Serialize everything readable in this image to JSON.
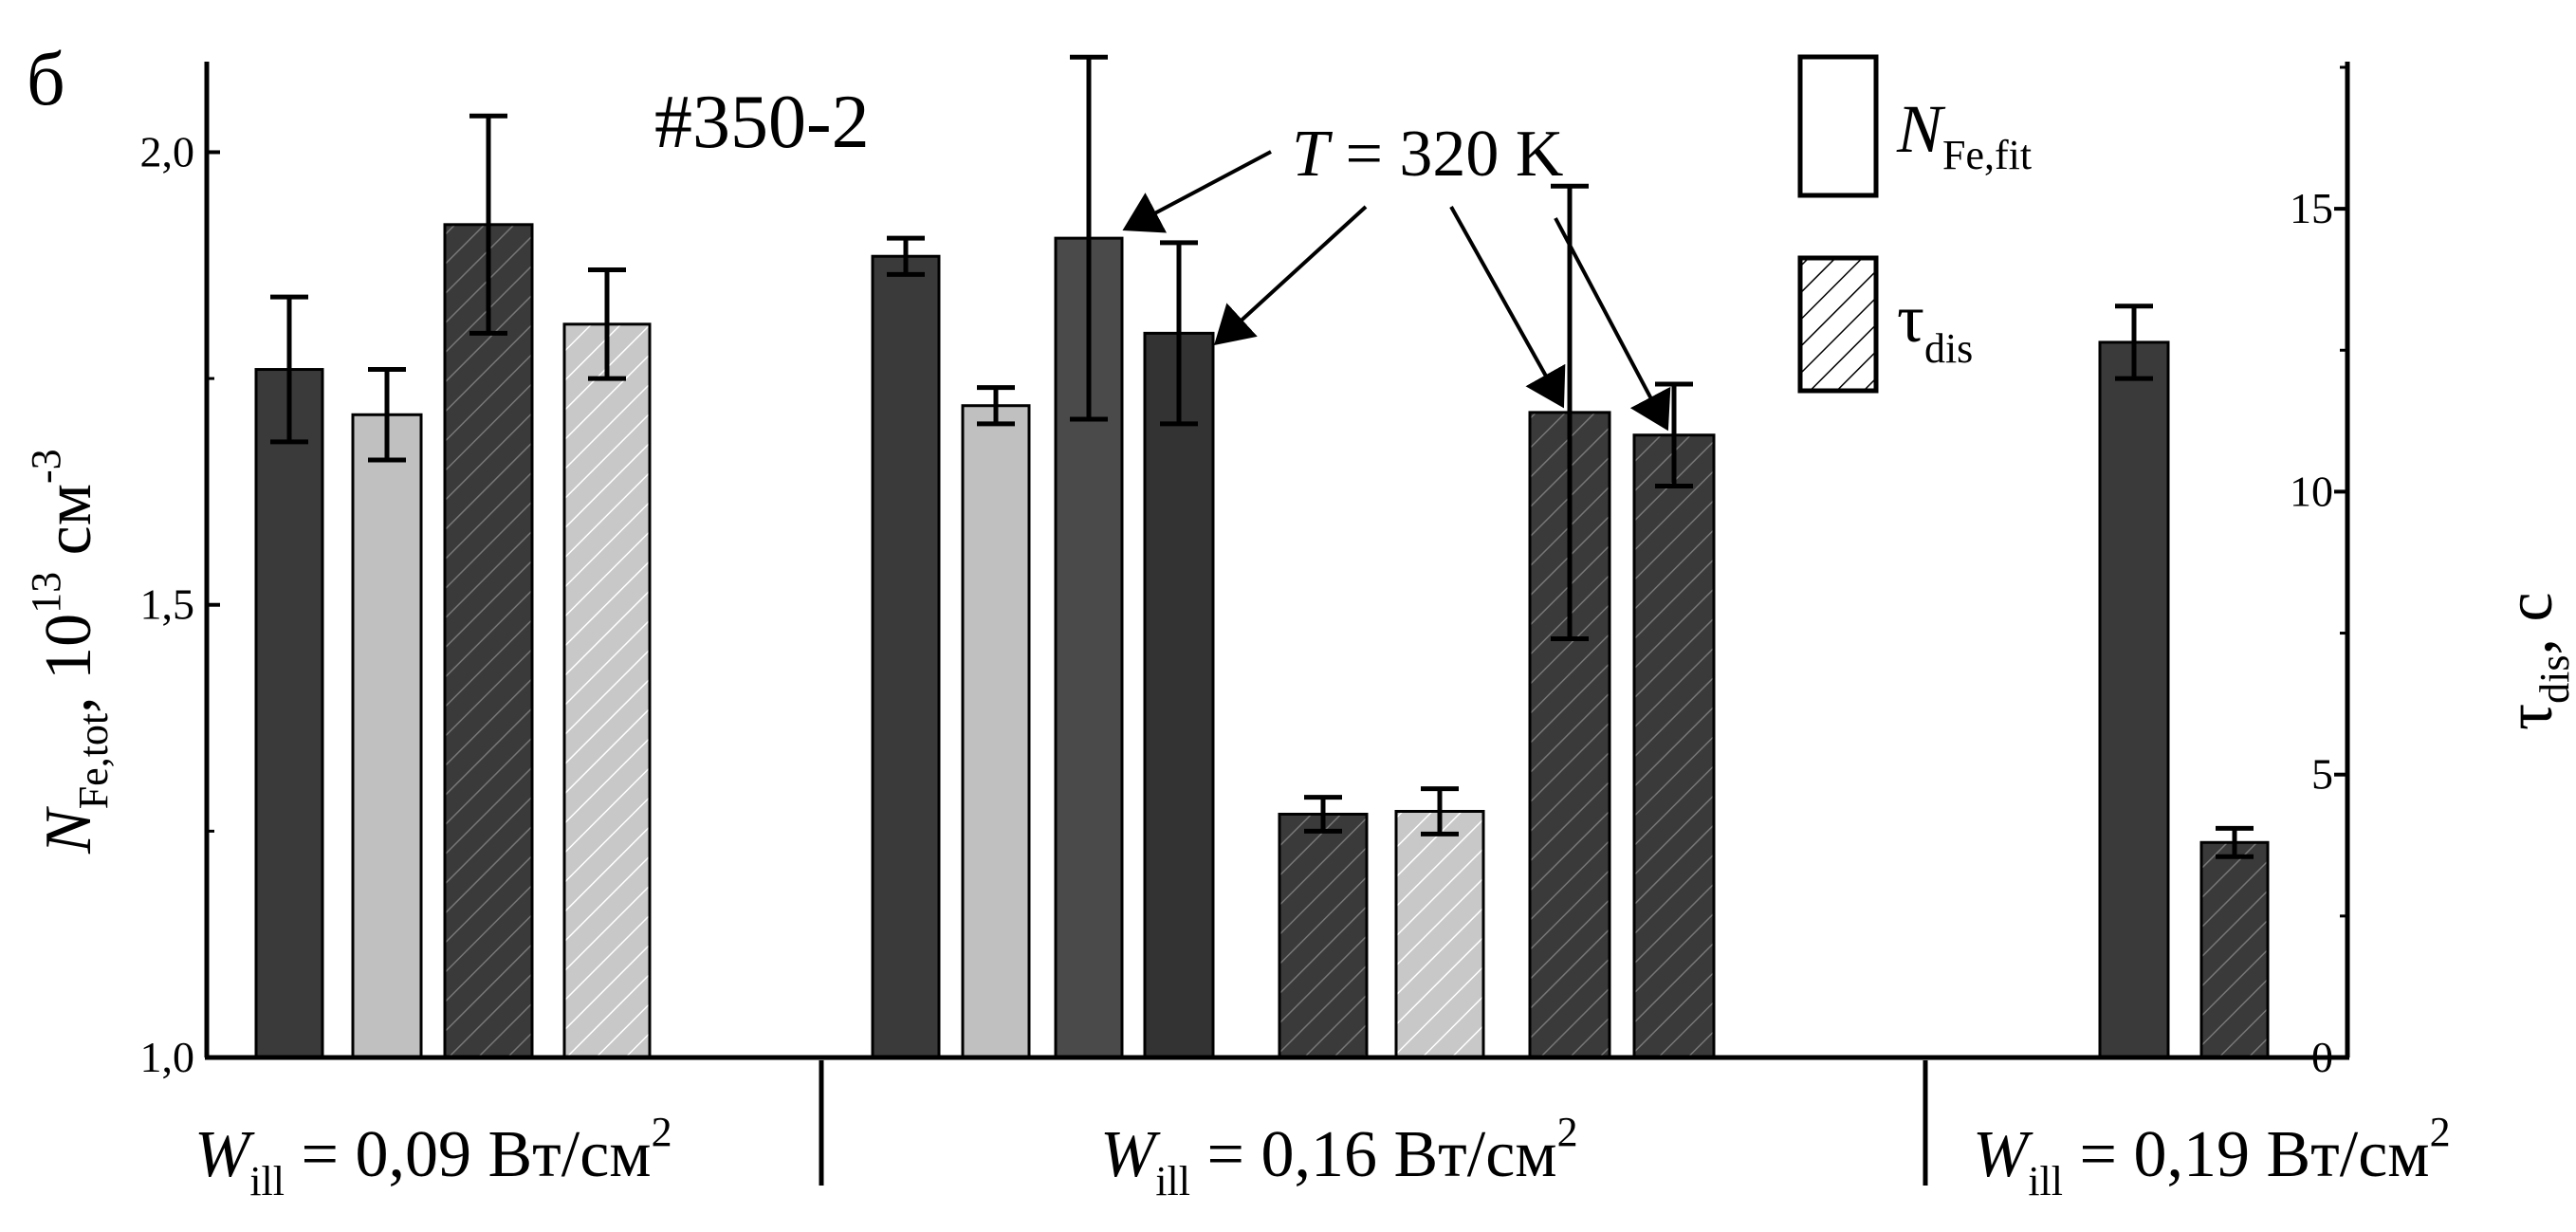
{
  "chart_data": {
    "type": "bar",
    "panel_label": "б",
    "sample_label": "#350-2",
    "annotation": {
      "var": "T",
      "text": " = 320 K"
    },
    "left_axis": {
      "label_main": "N",
      "label_sub": "Fe,tot",
      "label_unit": ", 10",
      "label_exp": "13",
      "label_unit2": " см",
      "label_exp2": "-3",
      "ylim": [
        1.0,
        2.1
      ],
      "ticks": [
        1.0,
        1.5,
        2.0
      ],
      "tick_labels": [
        "1,0",
        "1,5",
        "2,0"
      ]
    },
    "right_axis": {
      "label_main": "τ",
      "label_sub": "dis",
      "label_unit": ", с",
      "ylim": [
        0,
        17.6
      ],
      "ticks": [
        0,
        5,
        10,
        15
      ],
      "tick_labels": [
        "0",
        "5",
        "10",
        "15"
      ]
    },
    "legend": [
      {
        "main": "N",
        "sub": "Fe,fit",
        "pattern": "plain"
      },
      {
        "main": "τ",
        "sub": "dis",
        "pattern": "hatch"
      }
    ],
    "groups": [
      {
        "var": "W",
        "sub": "ill",
        "text": " = 0,09 Вт/см",
        "exp": "2"
      },
      {
        "var": "W",
        "sub": "ill",
        "text": " = 0,16 Вт/см",
        "exp": "2"
      },
      {
        "var": "W",
        "sub": "ill",
        "text": " = 0,19 Вт/см",
        "exp": "2"
      }
    ],
    "bars": [
      {
        "group": 0,
        "axis": "left",
        "value": 1.76,
        "err": 0.08,
        "color": "#3a3a3a",
        "hatch": false
      },
      {
        "group": 0,
        "axis": "left",
        "value": 1.71,
        "err": 0.05,
        "color": "#c0c0c0",
        "hatch": false
      },
      {
        "group": 0,
        "axis": "left",
        "value": 1.92,
        "err": 0.12,
        "color": "#3a3a3a",
        "hatch": true
      },
      {
        "group": 0,
        "axis": "left",
        "value": 1.81,
        "err": 0.06,
        "color": "#c0c0c0",
        "hatch": true
      },
      {
        "group": 1,
        "axis": "left",
        "value": 1.885,
        "err": 0.02,
        "color": "#3a3a3a",
        "hatch": false
      },
      {
        "group": 1,
        "axis": "left",
        "value": 1.72,
        "err": 0.02,
        "color": "#c0c0c0",
        "hatch": false
      },
      {
        "group": 1,
        "axis": "left",
        "value": 1.905,
        "err": 0.2,
        "color": "#4a4a4a",
        "hatch": false
      },
      {
        "group": 1,
        "axis": "left",
        "value": 1.8,
        "err": 0.1,
        "color": "#333333",
        "hatch": false
      },
      {
        "group": 1,
        "axis": "right",
        "value": 4.3,
        "err": 0.3,
        "color": "#3a3a3a",
        "hatch": true
      },
      {
        "group": 1,
        "axis": "right",
        "value": 4.35,
        "err": 0.4,
        "color": "#c0c0c0",
        "hatch": true
      },
      {
        "group": 1,
        "axis": "right",
        "value": 11.4,
        "err": 4.0,
        "color": "#4a4a4a",
        "hatch": true
      },
      {
        "group": 1,
        "axis": "right",
        "value": 11.0,
        "err": 0.9,
        "color": "#333333",
        "hatch": true
      },
      {
        "group": 2,
        "axis": "left",
        "value": 1.79,
        "err": 0.04,
        "color": "#3a3a3a",
        "hatch": false
      },
      {
        "group": 2,
        "axis": "right",
        "value": 3.8,
        "err": 0.25,
        "color": "#3a3a3a",
        "hatch": true
      }
    ],
    "arrows": [
      {
        "bar": 6
      },
      {
        "bar": 7
      },
      {
        "bar": 10
      },
      {
        "bar": 11
      }
    ]
  }
}
